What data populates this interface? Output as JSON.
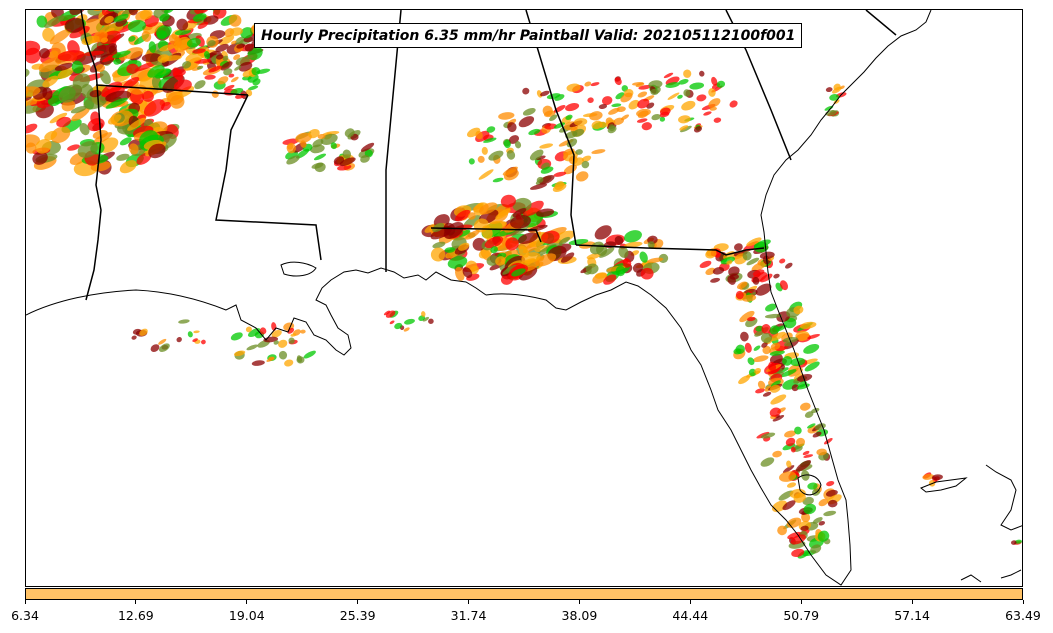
{
  "title": "Hourly Precipitation 6.35 mm/hr Paintball Valid: 202105112100f001",
  "colorbar": {
    "tick_labels": [
      "6.34",
      "12.69",
      "19.04",
      "25.39",
      "31.74",
      "38.09",
      "44.44",
      "50.79",
      "57.14",
      "63.49"
    ],
    "fill_color": "#ffc266"
  },
  "member_colors": [
    "#ff8c00",
    "#ff0000",
    "#8b0000",
    "#00c800",
    "#6b8e23",
    "#ffa500"
  ],
  "map_colors": {
    "coastline": "#000000",
    "background": "#ffffff"
  }
}
